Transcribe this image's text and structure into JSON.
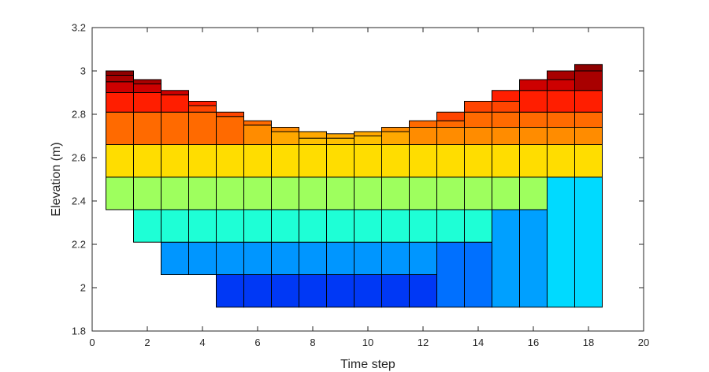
{
  "chart_data": {
    "type": "stacked-cell-grid",
    "title": "",
    "xlabel": "Time step",
    "ylabel": "Elevation (m)",
    "xlim": [
      0,
      20
    ],
    "ylim": [
      1.8,
      3.2
    ],
    "xticks": [
      0,
      2,
      4,
      6,
      8,
      10,
      12,
      14,
      16,
      18,
      20
    ],
    "xtick_labels": [
      "0",
      "2",
      "4",
      "6",
      "8",
      "10",
      "12",
      "14",
      "16",
      "18",
      "20"
    ],
    "yticks": [
      1.8,
      2.0,
      2.2,
      2.4,
      2.6,
      2.8,
      3.0,
      3.2
    ],
    "ytick_labels": [
      "1.8",
      "2",
      "2.2",
      "2.4",
      "2.6",
      "2.8",
      "3",
      "3.2"
    ],
    "grid": false,
    "legend": "none",
    "bar_width": 1,
    "columns": [
      {
        "x": 1,
        "cells": [
          [
            2.36,
            2.51,
            "#9EFF5E"
          ],
          [
            2.51,
            2.66,
            "#FFDD00"
          ],
          [
            2.66,
            2.81,
            "#FF6A00"
          ],
          [
            2.81,
            2.9,
            "#FF1E00"
          ],
          [
            2.9,
            2.95,
            "#CD0000"
          ],
          [
            2.95,
            2.98,
            "#A80000"
          ],
          [
            2.98,
            3.0,
            "#8E0000"
          ]
        ]
      },
      {
        "x": 2,
        "cells": [
          [
            2.21,
            2.36,
            "#1EFFD6"
          ],
          [
            2.36,
            2.51,
            "#9EFF5E"
          ],
          [
            2.51,
            2.66,
            "#FFDD00"
          ],
          [
            2.66,
            2.81,
            "#FF6A00"
          ],
          [
            2.81,
            2.9,
            "#FF1E00"
          ],
          [
            2.9,
            2.94,
            "#CD0000"
          ],
          [
            2.94,
            2.96,
            "#A80000"
          ]
        ]
      },
      {
        "x": 3,
        "cells": [
          [
            2.06,
            2.21,
            "#0096FF"
          ],
          [
            2.21,
            2.36,
            "#1EFFD6"
          ],
          [
            2.36,
            2.51,
            "#9EFF5E"
          ],
          [
            2.51,
            2.66,
            "#FFDD00"
          ],
          [
            2.66,
            2.81,
            "#FF6A00"
          ],
          [
            2.81,
            2.89,
            "#FF1E00"
          ],
          [
            2.89,
            2.91,
            "#CD0000"
          ]
        ]
      },
      {
        "x": 4,
        "cells": [
          [
            2.06,
            2.21,
            "#0096FF"
          ],
          [
            2.21,
            2.36,
            "#1EFFD6"
          ],
          [
            2.36,
            2.51,
            "#9EFF5E"
          ],
          [
            2.51,
            2.66,
            "#FFDD00"
          ],
          [
            2.66,
            2.81,
            "#FF6A00"
          ],
          [
            2.81,
            2.84,
            "#FF4500"
          ],
          [
            2.84,
            2.86,
            "#FF1E00"
          ]
        ]
      },
      {
        "x": 5,
        "cells": [
          [
            1.91,
            2.06,
            "#0038F5"
          ],
          [
            2.06,
            2.21,
            "#0096FF"
          ],
          [
            2.21,
            2.36,
            "#1EFFD6"
          ],
          [
            2.36,
            2.51,
            "#9EFF5E"
          ],
          [
            2.51,
            2.66,
            "#FFDD00"
          ],
          [
            2.66,
            2.79,
            "#FF6A00"
          ],
          [
            2.79,
            2.81,
            "#FF4500"
          ]
        ]
      },
      {
        "x": 6,
        "cells": [
          [
            1.91,
            2.06,
            "#0038F5"
          ],
          [
            2.06,
            2.21,
            "#0096FF"
          ],
          [
            2.21,
            2.36,
            "#1EFFD6"
          ],
          [
            2.36,
            2.51,
            "#9EFF5E"
          ],
          [
            2.51,
            2.66,
            "#FFDD00"
          ],
          [
            2.66,
            2.75,
            "#FF8C00"
          ],
          [
            2.75,
            2.77,
            "#FF6A00"
          ]
        ]
      },
      {
        "x": 7,
        "cells": [
          [
            1.91,
            2.06,
            "#0038F5"
          ],
          [
            2.06,
            2.21,
            "#0096FF"
          ],
          [
            2.21,
            2.36,
            "#1EFFD6"
          ],
          [
            2.36,
            2.51,
            "#9EFF5E"
          ],
          [
            2.51,
            2.66,
            "#FFDD00"
          ],
          [
            2.66,
            2.72,
            "#FFA800"
          ],
          [
            2.72,
            2.74,
            "#FF8C00"
          ]
        ]
      },
      {
        "x": 8,
        "cells": [
          [
            1.91,
            2.06,
            "#0038F5"
          ],
          [
            2.06,
            2.21,
            "#0096FF"
          ],
          [
            2.21,
            2.36,
            "#1EFFD6"
          ],
          [
            2.36,
            2.51,
            "#9EFF5E"
          ],
          [
            2.51,
            2.66,
            "#FFDD00"
          ],
          [
            2.66,
            2.69,
            "#FFC000"
          ],
          [
            2.69,
            2.72,
            "#FFA800"
          ]
        ]
      },
      {
        "x": 9,
        "cells": [
          [
            1.91,
            2.06,
            "#0038F5"
          ],
          [
            2.06,
            2.21,
            "#0096FF"
          ],
          [
            2.21,
            2.36,
            "#1EFFD6"
          ],
          [
            2.36,
            2.51,
            "#9EFF5E"
          ],
          [
            2.51,
            2.66,
            "#FFDD00"
          ],
          [
            2.66,
            2.69,
            "#FFC000"
          ],
          [
            2.69,
            2.71,
            "#FFA800"
          ]
        ]
      },
      {
        "x": 10,
        "cells": [
          [
            1.91,
            2.06,
            "#0038F5"
          ],
          [
            2.06,
            2.21,
            "#0096FF"
          ],
          [
            2.21,
            2.36,
            "#1EFFD6"
          ],
          [
            2.36,
            2.51,
            "#9EFF5E"
          ],
          [
            2.51,
            2.66,
            "#FFDD00"
          ],
          [
            2.66,
            2.7,
            "#FFC000"
          ],
          [
            2.7,
            2.72,
            "#FFA800"
          ]
        ]
      },
      {
        "x": 11,
        "cells": [
          [
            1.91,
            2.06,
            "#0038F5"
          ],
          [
            2.06,
            2.21,
            "#0096FF"
          ],
          [
            2.21,
            2.36,
            "#1EFFD6"
          ],
          [
            2.36,
            2.51,
            "#9EFF5E"
          ],
          [
            2.51,
            2.66,
            "#FFDD00"
          ],
          [
            2.66,
            2.72,
            "#FFA800"
          ],
          [
            2.72,
            2.74,
            "#FF8C00"
          ]
        ]
      },
      {
        "x": 12,
        "cells": [
          [
            1.91,
            2.06,
            "#0038F5"
          ],
          [
            2.06,
            2.21,
            "#0096FF"
          ],
          [
            2.21,
            2.36,
            "#1EFFD6"
          ],
          [
            2.36,
            2.51,
            "#9EFF5E"
          ],
          [
            2.51,
            2.66,
            "#FFDD00"
          ],
          [
            2.66,
            2.74,
            "#FF8C00"
          ],
          [
            2.74,
            2.77,
            "#FF6A00"
          ]
        ]
      },
      {
        "x": 13,
        "cells": [
          [
            1.91,
            2.21,
            "#0070FF"
          ],
          [
            2.21,
            2.36,
            "#1EFFD6"
          ],
          [
            2.36,
            2.51,
            "#9EFF5E"
          ],
          [
            2.51,
            2.66,
            "#FFDD00"
          ],
          [
            2.66,
            2.74,
            "#FF8C00"
          ],
          [
            2.74,
            2.77,
            "#FF6A00"
          ],
          [
            2.77,
            2.81,
            "#FF4500"
          ]
        ]
      },
      {
        "x": 14,
        "cells": [
          [
            1.91,
            2.21,
            "#0070FF"
          ],
          [
            2.21,
            2.36,
            "#1EFFD6"
          ],
          [
            2.36,
            2.51,
            "#9EFF5E"
          ],
          [
            2.51,
            2.66,
            "#FFDD00"
          ],
          [
            2.66,
            2.74,
            "#FF8C00"
          ],
          [
            2.74,
            2.81,
            "#FF6A00"
          ],
          [
            2.81,
            2.86,
            "#FF4500"
          ]
        ]
      },
      {
        "x": 15,
        "cells": [
          [
            1.91,
            2.36,
            "#00A0FF"
          ],
          [
            2.36,
            2.51,
            "#9EFF5E"
          ],
          [
            2.51,
            2.66,
            "#FFDD00"
          ],
          [
            2.66,
            2.74,
            "#FF8C00"
          ],
          [
            2.74,
            2.81,
            "#FF6A00"
          ],
          [
            2.81,
            2.86,
            "#FF4500"
          ],
          [
            2.86,
            2.91,
            "#FF1E00"
          ]
        ]
      },
      {
        "x": 16,
        "cells": [
          [
            1.91,
            2.36,
            "#00A0FF"
          ],
          [
            2.36,
            2.51,
            "#9EFF5E"
          ],
          [
            2.51,
            2.66,
            "#FFDD00"
          ],
          [
            2.66,
            2.74,
            "#FF8C00"
          ],
          [
            2.74,
            2.81,
            "#FF6A00"
          ],
          [
            2.81,
            2.91,
            "#FF1E00"
          ],
          [
            2.91,
            2.96,
            "#CD0000"
          ]
        ]
      },
      {
        "x": 17,
        "cells": [
          [
            1.91,
            2.51,
            "#00DAFF"
          ],
          [
            2.51,
            2.66,
            "#FFDD00"
          ],
          [
            2.66,
            2.74,
            "#FF8C00"
          ],
          [
            2.74,
            2.81,
            "#FF6A00"
          ],
          [
            2.81,
            2.91,
            "#FF1E00"
          ],
          [
            2.91,
            2.96,
            "#CD0000"
          ],
          [
            2.96,
            3.0,
            "#A80000"
          ]
        ]
      },
      {
        "x": 18,
        "cells": [
          [
            1.91,
            2.51,
            "#00DAFF"
          ],
          [
            2.51,
            2.66,
            "#FFDD00"
          ],
          [
            2.66,
            2.74,
            "#FF8C00"
          ],
          [
            2.74,
            2.81,
            "#FF6A00"
          ],
          [
            2.81,
            2.91,
            "#FF1E00"
          ],
          [
            2.91,
            3.0,
            "#A80000"
          ],
          [
            3.0,
            3.03,
            "#8E0000"
          ]
        ]
      }
    ]
  }
}
